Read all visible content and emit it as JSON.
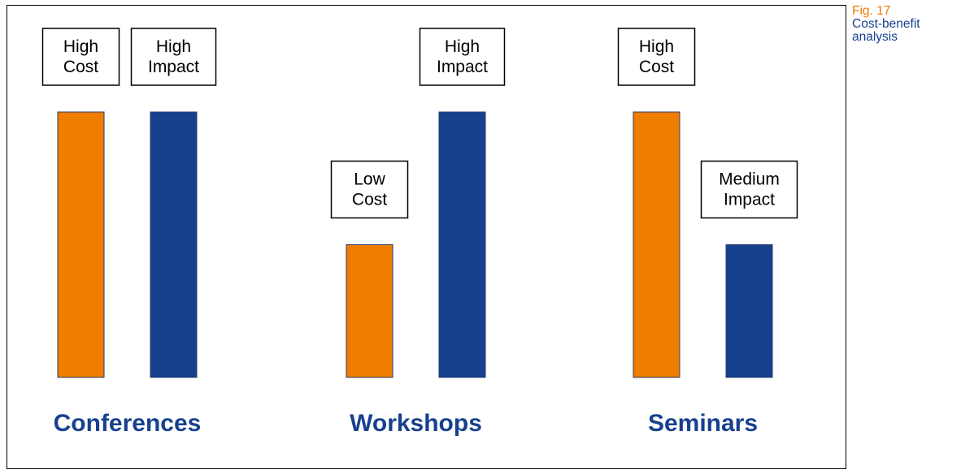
{
  "chart_data": {
    "type": "bar",
    "categories": [
      "Conferences",
      "Workshops",
      "Seminars"
    ],
    "series": [
      {
        "values": [
          3,
          1.5,
          3
        ],
        "labels": [
          [
            "High",
            "Cost"
          ],
          [
            "Low",
            "Cost"
          ],
          [
            "High",
            "Cost"
          ]
        ]
      },
      {
        "values": [
          3,
          3,
          1.5
        ],
        "labels": [
          [
            "High",
            "Impact"
          ],
          [
            "High",
            "Impact"
          ],
          [
            "Medium",
            "Impact"
          ]
        ]
      }
    ],
    "ylim": [
      0,
      3
    ],
    "title": "",
    "xlabel": "",
    "ylabel": "",
    "colors": {
      "cost": "#ef7d00",
      "impact": "#17408e",
      "category_text": "#17408e"
    }
  },
  "caption": {
    "figure_number": "Fig. 17",
    "line1": "Cost-benefit",
    "line2": "analysis",
    "figure_number_color": "#ef7d00",
    "text_color": "#17408e"
  }
}
